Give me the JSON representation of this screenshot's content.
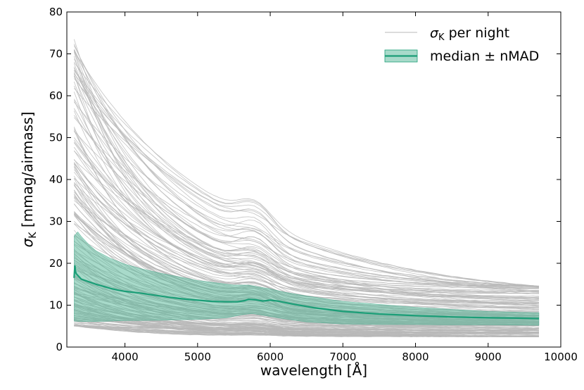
{
  "chart_data": {
    "type": "line",
    "xlabel": "wavelength [Å]",
    "ylabel_symbol": "σ",
    "ylabel_sub": "K",
    "ylabel_rest": " [mmag/airmass]",
    "xlim": [
      3200,
      10000
    ],
    "ylim": [
      0,
      80
    ],
    "xticks": [
      4000,
      5000,
      6000,
      7000,
      8000,
      9000,
      10000
    ],
    "yticks": [
      0,
      10,
      20,
      30,
      40,
      50,
      60,
      70,
      80
    ],
    "grid": false,
    "legend_position": "top-right",
    "legend": [
      {
        "symbol": "σ",
        "sub": "K",
        "rest": " per night",
        "style": "line",
        "color": "#b8b8b8"
      },
      {
        "symbol": "",
        "sub": "",
        "rest": "median ± nMAD",
        "style": "band",
        "color": "#1b9e77"
      }
    ],
    "colors": {
      "night": "#b8b8b8",
      "median": "#1b9e77",
      "band_fill": "#52b596"
    },
    "x_range_data": [
      3300,
      9700
    ],
    "series": [
      {
        "role": "median",
        "points": [
          [
            3300,
            16.5
          ],
          [
            3310,
            19.5
          ],
          [
            3320,
            18.0
          ],
          [
            3330,
            17.5
          ],
          [
            3400,
            16.2
          ],
          [
            3500,
            15.6
          ],
          [
            3600,
            15.0
          ],
          [
            3700,
            14.5
          ],
          [
            3800,
            14.0
          ],
          [
            3900,
            13.6
          ],
          [
            4000,
            13.3
          ],
          [
            4200,
            12.9
          ],
          [
            4400,
            12.4
          ],
          [
            4600,
            11.9
          ],
          [
            4800,
            11.5
          ],
          [
            5000,
            11.2
          ],
          [
            5200,
            10.9
          ],
          [
            5400,
            10.8
          ],
          [
            5550,
            10.8
          ],
          [
            5650,
            11.1
          ],
          [
            5700,
            11.4
          ],
          [
            5800,
            11.3
          ],
          [
            5900,
            11.0
          ],
          [
            6000,
            11.2
          ],
          [
            6100,
            11.0
          ],
          [
            6300,
            10.3
          ],
          [
            6600,
            9.4
          ],
          [
            7000,
            8.5
          ],
          [
            7500,
            7.9
          ],
          [
            8000,
            7.5
          ],
          [
            8500,
            7.2
          ],
          [
            9000,
            7.0
          ],
          [
            9400,
            6.9
          ],
          [
            9700,
            6.8
          ]
        ]
      },
      {
        "role": "nmad-band",
        "upper": [
          [
            3300,
            26.5
          ],
          [
            3350,
            27.5
          ],
          [
            3400,
            26.4
          ],
          [
            3500,
            24.5
          ],
          [
            3600,
            23.0
          ],
          [
            3800,
            21.2
          ],
          [
            4000,
            19.8
          ],
          [
            4200,
            18.8
          ],
          [
            4500,
            17.6
          ],
          [
            5000,
            15.9
          ],
          [
            5500,
            14.8
          ],
          [
            5700,
            14.8
          ],
          [
            5900,
            14.2
          ],
          [
            6000,
            13.9
          ],
          [
            6200,
            13.1
          ],
          [
            6500,
            12.2
          ],
          [
            7000,
            10.9
          ],
          [
            7500,
            10.2
          ],
          [
            8000,
            9.5
          ],
          [
            8500,
            9.0
          ],
          [
            9000,
            8.5
          ],
          [
            9700,
            8.2
          ]
        ],
        "lower": [
          [
            3300,
            6.2
          ],
          [
            3400,
            6.1
          ],
          [
            3600,
            6.1
          ],
          [
            3800,
            6.2
          ],
          [
            4000,
            6.3
          ],
          [
            4500,
            6.4
          ],
          [
            5000,
            6.6
          ],
          [
            5400,
            7.0
          ],
          [
            5600,
            7.7
          ],
          [
            5750,
            8.0
          ],
          [
            5900,
            7.6
          ],
          [
            6100,
            7.0
          ],
          [
            6500,
            6.0
          ],
          [
            7000,
            5.5
          ],
          [
            7500,
            5.4
          ],
          [
            8000,
            5.4
          ],
          [
            8500,
            5.3
          ],
          [
            9000,
            5.3
          ],
          [
            9700,
            5.2
          ]
        ]
      }
    ],
    "night_curves": {
      "count": 200,
      "value_at_3300": {
        "min": 5,
        "max": 75
      },
      "value_at_9700": {
        "min": 2.5,
        "max": 14.5
      }
    }
  }
}
